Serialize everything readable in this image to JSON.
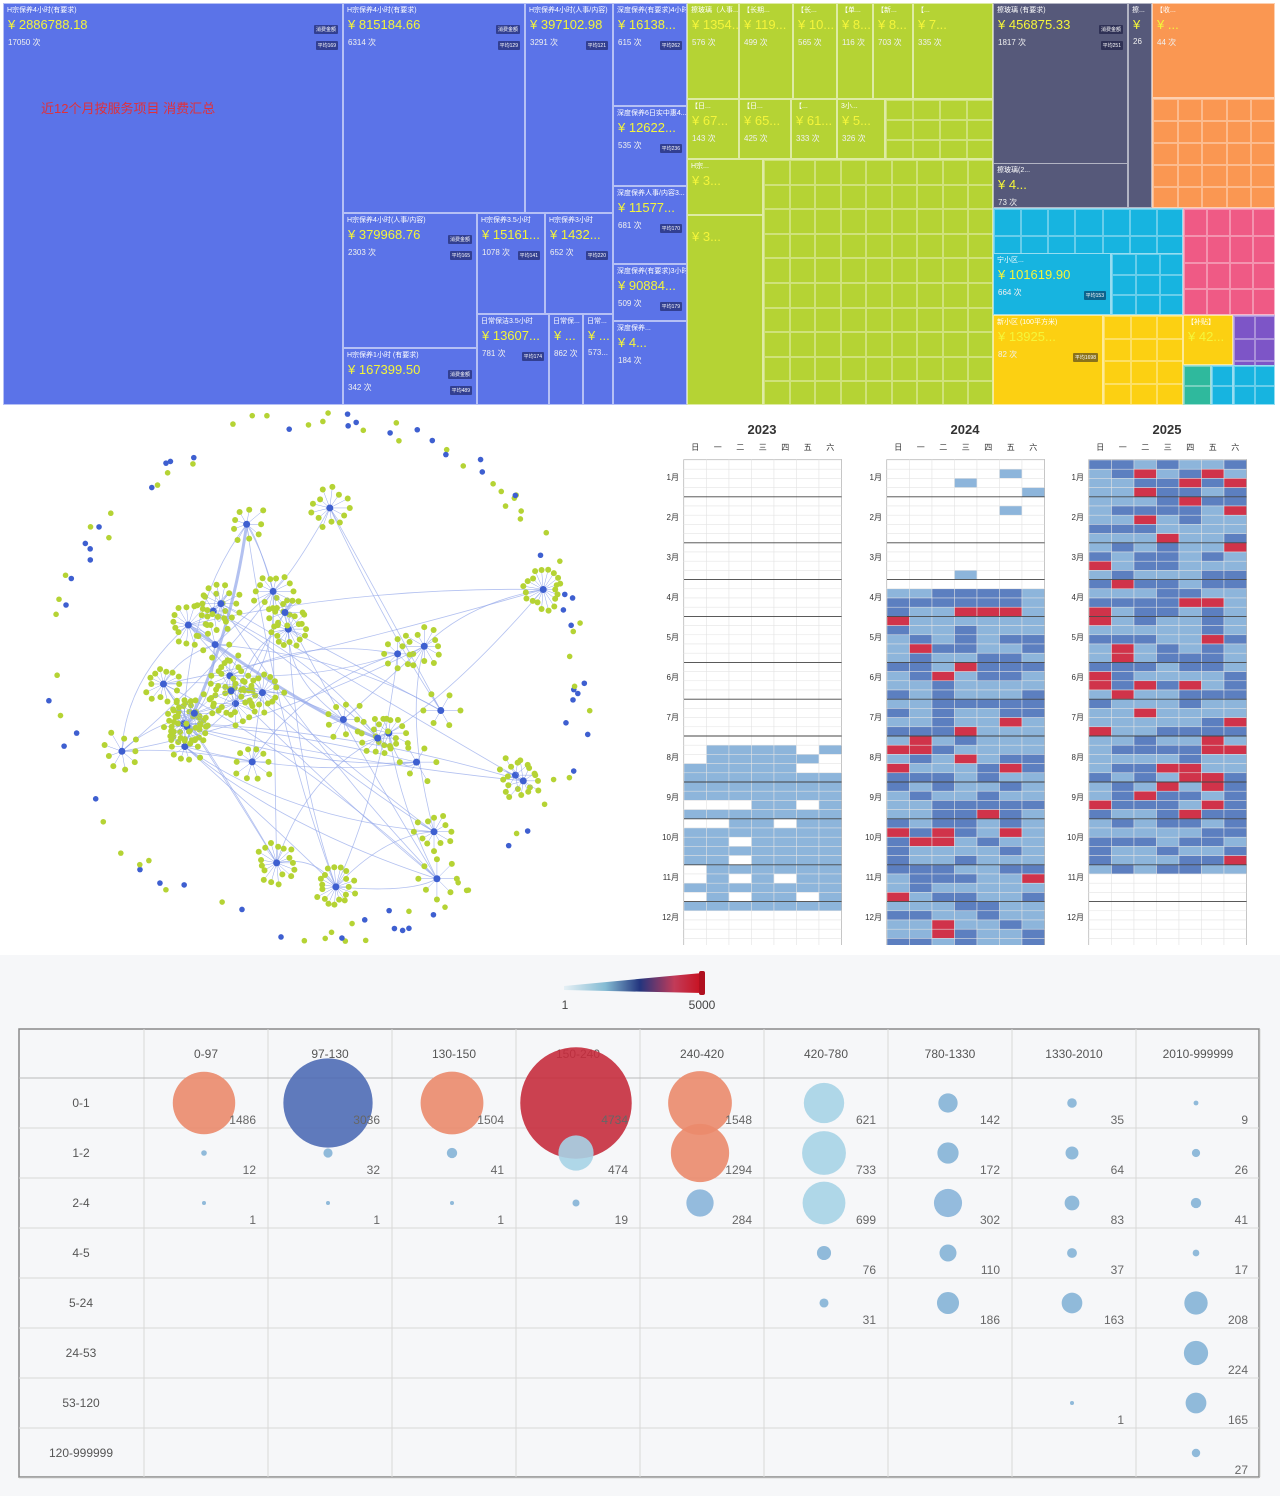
{
  "treemap": {
    "title": "近12个月按服务项目 消费汇总",
    "colors": {
      "blue": "#5b73e8",
      "lime": "#b5d334",
      "slate": "#56597a",
      "orange": "#fa9752",
      "cyan": "#17b4e0",
      "yellow": "#fcd012",
      "pink": "#ef5a85",
      "purple": "#7d55c7",
      "teal": "#2fb99d"
    },
    "tiles": [
      {
        "label": "H宗保养4小时(有要求)",
        "amount": "¥ 2886788.18",
        "count": "17050 次",
        "tag": "消费金额",
        "avg": "平均169"
      },
      {
        "label": "H宗保养4小时(有要求)",
        "amount": "¥ 815184.66",
        "count": "6314 次",
        "tag": "消费金额",
        "avg": "平均129"
      },
      {
        "label": "H宗保养4小时(人事/内容)",
        "amount": "¥ 397102.98",
        "count": "3291 次",
        "tag": "消费金额",
        "avg": "平均121"
      },
      {
        "label": "深度保养(有要求)4小时",
        "amount": "¥ 16138...",
        "count": "615 次",
        "tag": "",
        "avg": "平均262"
      },
      {
        "label": "深度保养6日实中惠4...",
        "amount": "¥ 12622...",
        "count": "535 次",
        "tag": "",
        "avg": "平均236"
      },
      {
        "label": "深度保养人事/内容3...",
        "amount": "¥ 11577...",
        "count": "681 次",
        "tag": "",
        "avg": "平均170"
      },
      {
        "label": "深度保养(有要求)3小时",
        "amount": "¥ 90884...",
        "count": "509 次",
        "tag": "",
        "avg": "平均179"
      },
      {
        "label": "深度保养...",
        "amount": "¥ 4...",
        "count": "184 次",
        "tag": "",
        "avg": ""
      },
      {
        "label": "H宗保养4小时(人事/内容)",
        "amount": "¥ 379968.76",
        "count": "2303 次",
        "tag": "消费金额",
        "avg": "平均165"
      },
      {
        "label": "H宗保养3.5小时",
        "amount": "¥ 15161...",
        "count": "1078 次",
        "tag": "",
        "avg": "平均141"
      },
      {
        "label": "H宗保养3小时",
        "amount": "¥ 1432...",
        "count": "652 次",
        "tag": "",
        "avg": "平均220"
      },
      {
        "label": "H宗保养1小时 (有要求)",
        "amount": "¥ 167399.50",
        "count": "342 次",
        "tag": "消费金额",
        "avg": "平均489"
      },
      {
        "label": "日常保洁3.5小时",
        "amount": "¥ 13607...",
        "count": "781 次",
        "tag": "",
        "avg": "平均174"
      },
      {
        "label": "日常保...",
        "amount": "¥ ...",
        "count": "862 次",
        "tag": "",
        "avg": ""
      },
      {
        "label": "日常...",
        "amount": "¥ ...",
        "count": "573...",
        "tag": "",
        "avg": ""
      },
      {
        "label": "擦玻璃 (有要求)",
        "amount": "¥ 456875.33",
        "count": "1817 次",
        "tag": "消费金额",
        "avg": "平均251"
      },
      {
        "label": "擦...",
        "amount": "¥",
        "count": "26",
        "tag": "",
        "avg": ""
      },
      {
        "label": "擦玻璃（人事...",
        "amount": "¥ 1354...",
        "count": "576 次",
        "tag": "",
        "avg": "平均235"
      },
      {
        "label": "【长期...",
        "amount": "¥ 119...",
        "count": "499 次",
        "tag": "",
        "avg": "平均240"
      },
      {
        "label": "【长...",
        "amount": "¥ 10...",
        "count": "565 次",
        "tag": "",
        "avg": ""
      },
      {
        "label": "【单...",
        "amount": "¥ 8...",
        "count": "116 次",
        "tag": "",
        "avg": ""
      },
      {
        "label": "【新...",
        "amount": "¥ 8...",
        "count": "703 次",
        "tag": "",
        "avg": ""
      },
      {
        "label": "【...",
        "amount": "¥ 7...",
        "count": "335 次",
        "tag": "",
        "avg": ""
      },
      {
        "label": "【日...",
        "amount": "¥ 67...",
        "count": "143 次",
        "tag": "",
        "avg": ""
      },
      {
        "label": "【日...",
        "amount": "¥ 65...",
        "count": "425 次",
        "tag": "",
        "avg": ""
      },
      {
        "label": "【...",
        "amount": "¥ 61...",
        "count": "333 次",
        "tag": "",
        "avg": ""
      },
      {
        "label": "3小...",
        "amount": "¥ 5...",
        "count": "326 次",
        "tag": "",
        "avg": ""
      },
      {
        "label": "H宗...",
        "amount": "¥ 3...",
        "count": "",
        "tag": "",
        "avg": ""
      },
      {
        "label": "",
        "amount": "¥ 3...",
        "count": "",
        "tag": "",
        "avg": ""
      },
      {
        "label": "擦玻璃(2...",
        "amount": "¥ 4...",
        "count": "73 次",
        "tag": "",
        "avg": ""
      },
      {
        "label": "【收...",
        "amount": "¥ ...",
        "count": "44 次",
        "tag": "",
        "avg": ""
      },
      {
        "label": "宁小区...",
        "amount": "¥ 101619.90",
        "count": "664 次",
        "tag": "",
        "avg": "平均153"
      },
      {
        "label": "新小区 (100平方米)",
        "amount": "¥ 13925...",
        "count": "82 次",
        "tag": "",
        "avg": "平均1698"
      },
      {
        "label": "【补贴】",
        "amount": "¥ 42...",
        "count": "",
        "tag": "",
        "avg": ""
      }
    ]
  },
  "calendars": {
    "weekdays": [
      "日",
      "一",
      "二",
      "三",
      "四",
      "五",
      "六"
    ],
    "months": [
      "1月",
      "2月",
      "3月",
      "4月",
      "5月",
      "6月",
      "7月",
      "8月",
      "9月",
      "10月",
      "11月",
      "12月"
    ],
    "years": [
      "2023",
      "2024",
      "2025"
    ],
    "colors": {
      "low": "#8db5db",
      "mid": "#5c7fc0",
      "high": "#d0334a",
      "empty": "#ffffff"
    }
  },
  "legend": {
    "min": "1",
    "max": "5000"
  },
  "bubble": {
    "columns": [
      "0-97",
      "97-130",
      "130-150",
      "150-240",
      "240-420",
      "420-780",
      "780-1330",
      "1330-2010",
      "2010-999999"
    ],
    "rows": [
      "0-1",
      "1-2",
      "2-4",
      "4-5",
      "5-24",
      "24-53",
      "53-120",
      "120-999999"
    ],
    "values": [
      [
        1486,
        3036,
        1504,
        4734,
        1548,
        621,
        142,
        35,
        9
      ],
      [
        12,
        32,
        41,
        474,
        1294,
        733,
        172,
        64,
        26
      ],
      [
        1,
        1,
        1,
        19,
        284,
        699,
        302,
        83,
        41
      ],
      [
        null,
        null,
        null,
        null,
        null,
        76,
        110,
        37,
        17
      ],
      [
        null,
        null,
        null,
        null,
        null,
        31,
        186,
        163,
        208
      ],
      [
        null,
        null,
        null,
        null,
        null,
        null,
        null,
        null,
        224
      ],
      [
        null,
        null,
        null,
        null,
        null,
        null,
        null,
        1,
        165
      ],
      [
        null,
        null,
        null,
        null,
        null,
        null,
        null,
        null,
        27
      ]
    ]
  },
  "network": {
    "node_color": "#b5d334",
    "hub_color": "#3e5fd0",
    "edge_color": "#93a6ea"
  }
}
